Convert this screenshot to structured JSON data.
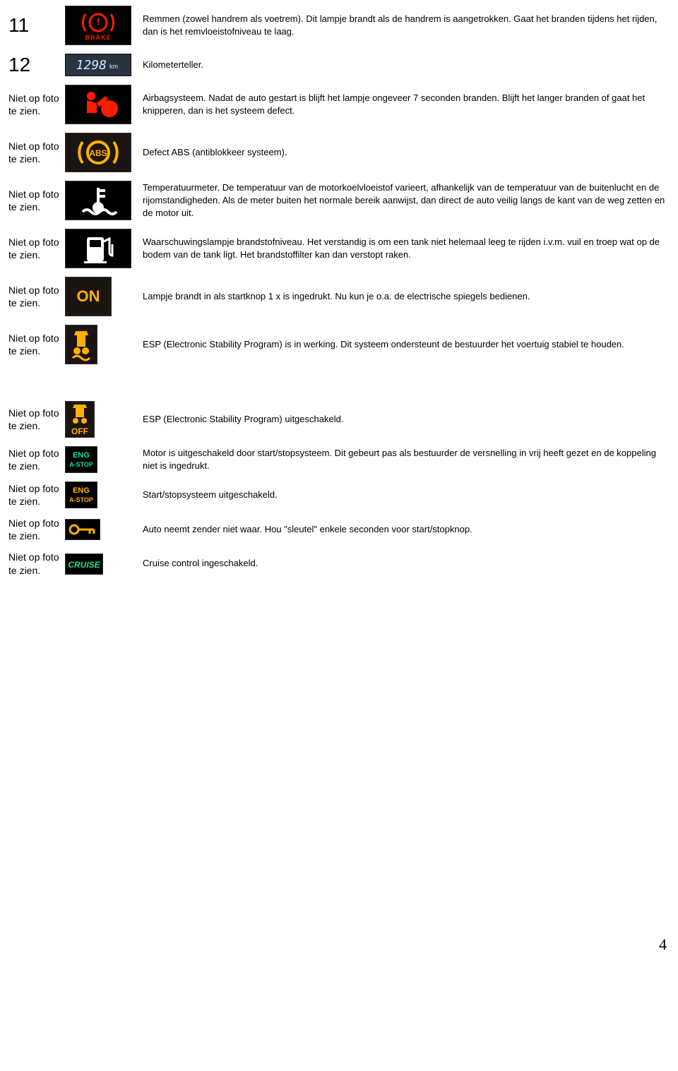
{
  "rows": [
    {
      "num": "11",
      "num_style": "big",
      "icon": "brake",
      "desc": "Remmen (zowel handrem als voetrem). Dit lampje brandt als de handrem is aangetrokken. Gaat het branden tijdens het rijden, dan is het remvloeistofniveau te laag."
    },
    {
      "num": "12",
      "num_style": "big",
      "icon": "odo",
      "desc": "Kilometerteller."
    },
    {
      "num": "Niet op foto te zien.",
      "num_style": "small",
      "icon": "airbag",
      "desc": "Airbagsysteem. Nadat de auto gestart is blijft het lampje ongeveer 7 seconden branden. Blijft het langer branden of gaat het knipperen, dan is het systeem defect."
    },
    {
      "num": "Niet op foto te zien.",
      "num_style": "small",
      "icon": "abs",
      "desc": "Defect ABS (antiblokkeer systeem)."
    },
    {
      "num": "Niet op foto te zien.",
      "num_style": "small",
      "icon": "temp",
      "desc": "Temperatuurmeter. De temperatuur van de motorkoelvloeistof varieert, afhankelijk van de temperatuur van de buitenlucht en de rijomstandigheden. Als de meter buiten het normale bereik aanwijst, dan direct de auto veilig langs de kant van de weg zetten en de motor uit."
    },
    {
      "num": "Niet op foto te zien.",
      "num_style": "small",
      "icon": "fuel",
      "desc": "Waarschuwingslampje brandstofniveau. Het verstandig is om een tank niet helemaal leeg te rijden i.v.m. vuil en troep wat op de bodem van de tank ligt. Het brandstoffilter kan dan verstopt raken."
    },
    {
      "num": "Niet op foto te zien.",
      "num_style": "small",
      "icon": "on",
      "desc": "Lampje brandt in als startknop 1 x is ingedrukt. Nu kun je o.a. de electrische spiegels bedienen."
    },
    {
      "num": "Niet op foto te zien.",
      "num_style": "small",
      "icon": "esp",
      "desc": "ESP (Electronic Stability Program) is in werking. Dit systeem ondersteunt de bestuurder het voertuig stabiel te houden."
    }
  ],
  "rows2": [
    {
      "num": "Niet op foto te zien.",
      "num_style": "small",
      "icon": "espoff",
      "desc": "ESP (Electronic Stability Program) uitgeschakeld."
    },
    {
      "num": "Niet op foto te zien.",
      "num_style": "small",
      "icon": "astop_on",
      "desc": "Motor is uitgeschakeld door start/stopsysteem. Dit gebeurt pas als bestuurder de versnelling in vrij heeft gezet en de koppeling niet is ingedrukt."
    },
    {
      "num": "Niet op foto te zien.",
      "num_style": "small",
      "icon": "astop_off",
      "desc": "Start/stopsysteem uitgeschakeld."
    },
    {
      "num": "Niet op foto te zien.",
      "num_style": "small",
      "icon": "key",
      "desc": "Auto neemt zender niet waar. Hou \"sleutel\" enkele seconden voor start/stopknop."
    },
    {
      "num": "Niet op foto te zien.",
      "num_style": "small",
      "icon": "cruise",
      "desc": "Cruise control ingeschakeld."
    }
  ],
  "page_number": "4",
  "colors": {
    "dash_black": "#000000",
    "dash_dark": "#1a1510",
    "warn_red": "#ff1a00",
    "warn_amber": "#ffb000",
    "white": "#ffffff",
    "lcd_bg": "#2a3440",
    "lcd_fg": "#cfe8ff",
    "green": "#18e090"
  },
  "icon_text": {
    "brake": "BRAKE",
    "odo": "1298",
    "odo_unit": "km",
    "abs": "ABS",
    "on": "ON",
    "espoff": "OFF",
    "astop_on": "ENG\nA-STOP",
    "astop_off": "ENG\nA-STOP",
    "cruise": "CRUISE"
  }
}
